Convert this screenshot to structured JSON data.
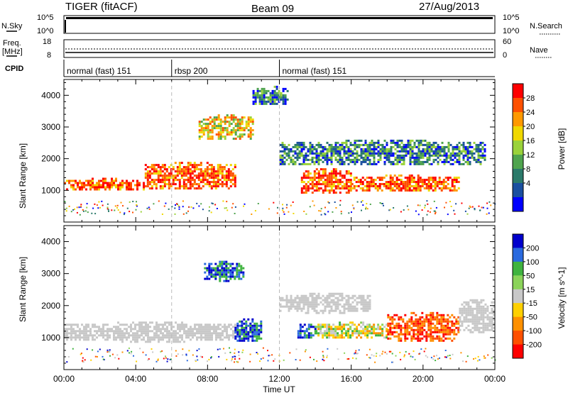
{
  "header": {
    "radar": "TIGER (fitACF)",
    "beam": "Beam 09",
    "date": "27/Aug/2013"
  },
  "strips": {
    "nsky_label": "N.Sky",
    "nsearch_label": "N.Search",
    "freq_label": "Freq.",
    "freq_unit": "[MHz]",
    "nave_label": "Nave",
    "cpid_label": "CPID",
    "nsky_ticks": [
      "10^5",
      "10^0"
    ],
    "nsearch_ticks": [
      "10^5",
      "10^0"
    ],
    "freq_ticks": [
      "18",
      "8"
    ],
    "nave_ticks": [
      "60",
      "0"
    ],
    "cpid_segments": [
      {
        "label": "normal (fast) 151",
        "start_hour": 0,
        "end_hour": 6
      },
      {
        "label": "rbsp 200",
        "start_hour": 6,
        "end_hour": 12
      },
      {
        "label": "normal (fast) 151",
        "start_hour": 12,
        "end_hour": 24
      }
    ]
  },
  "chart_data": [
    {
      "type": "heatmap",
      "panel": "power",
      "ylabel": "Slant Range [km]",
      "ylim": [
        0,
        4500
      ],
      "xlim": [
        0,
        24
      ],
      "yticks": [
        1000,
        2000,
        3000,
        4000
      ],
      "colorbar": {
        "label": "Power [dB]",
        "ticks": [
          "28",
          "24",
          "20",
          "16",
          "12",
          "8",
          "4"
        ],
        "colors": [
          "#ff0000",
          "#ff5000",
          "#ff9900",
          "#f0d800",
          "#9ad23a",
          "#4fa44e",
          "#2b7a6a",
          "#1a4fa0",
          "#0000ff"
        ]
      },
      "bands": [
        {
          "x0": 0,
          "x1": 4.5,
          "y0": 1000,
          "y1": 1400,
          "level": "high"
        },
        {
          "x0": 4.5,
          "x1": 9.5,
          "y0": 1050,
          "y1": 1900,
          "level": "high"
        },
        {
          "x0": 13.2,
          "x1": 16,
          "y0": 900,
          "y1": 1700,
          "level": "high"
        },
        {
          "x0": 16,
          "x1": 22,
          "y0": 1000,
          "y1": 1500,
          "level": "high"
        },
        {
          "x0": 7.5,
          "x1": 10.5,
          "y0": 2600,
          "y1": 3400,
          "level": "mid"
        },
        {
          "x0": 10.5,
          "x1": 12.5,
          "y0": 3700,
          "y1": 4300,
          "level": "low"
        },
        {
          "x0": 12,
          "x1": 23.5,
          "y0": 1800,
          "y1": 2600,
          "level": "low"
        }
      ]
    },
    {
      "type": "heatmap",
      "panel": "velocity",
      "ylabel": "Slant Range [km]",
      "xlabel": "Time UT",
      "ylim": [
        0,
        4500
      ],
      "xlim": [
        0,
        24
      ],
      "yticks": [
        1000,
        2000,
        3000,
        4000
      ],
      "xticks": [
        "00:00",
        "04:00",
        "08:00",
        "12:00",
        "16:00",
        "20:00",
        "00:00"
      ],
      "colorbar": {
        "label": "Velocity [m s^-1]",
        "ticks": [
          "200",
          "100",
          "50",
          "15",
          "-15",
          "-50",
          "-100",
          "-200"
        ],
        "colors": [
          "#0000cc",
          "#2a6adf",
          "#3fb33f",
          "#8bd35a",
          "#c8c8c8",
          "#ffd000",
          "#ff9000",
          "#ff5000",
          "#ff0000"
        ]
      },
      "bands": [
        {
          "x0": 0,
          "x1": 9.5,
          "y0": 900,
          "y1": 1500,
          "level": "ground"
        },
        {
          "x0": 9.5,
          "x1": 11,
          "y0": 900,
          "y1": 1600,
          "level": "positive"
        },
        {
          "x0": 13,
          "x1": 14,
          "y0": 1000,
          "y1": 1500,
          "level": "positive"
        },
        {
          "x0": 14,
          "x1": 18,
          "y0": 1000,
          "y1": 1500,
          "level": "mixed"
        },
        {
          "x0": 18,
          "x1": 22,
          "y0": 900,
          "y1": 1800,
          "level": "negative"
        },
        {
          "x0": 22,
          "x1": 24,
          "y0": 1200,
          "y1": 2200,
          "level": "ground"
        },
        {
          "x0": 7.8,
          "x1": 10,
          "y0": 2800,
          "y1": 3400,
          "level": "positive"
        },
        {
          "x0": 12,
          "x1": 17,
          "y0": 1800,
          "y1": 2400,
          "level": "ground"
        }
      ]
    }
  ]
}
